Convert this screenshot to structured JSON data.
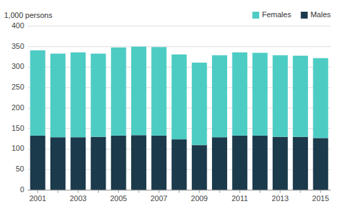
{
  "chart_data": {
    "type": "bar",
    "stacked": true,
    "ylabel": "1,000 persons",
    "categories": [
      "2001",
      null,
      "2003",
      null,
      "2005",
      null,
      "2007",
      null,
      "2009",
      null,
      "2011",
      null,
      "2013",
      null,
      "2015"
    ],
    "series": [
      {
        "name": "Males",
        "color": "#1b3a4b",
        "values": [
          133,
          129,
          129,
          130,
          133,
          134,
          133,
          124,
          110,
          129,
          133,
          133,
          130,
          130,
          127
        ]
      },
      {
        "name": "Females",
        "color": "#4dccc4",
        "values": [
          208,
          204,
          207,
          203,
          215,
          216,
          216,
          207,
          201,
          200,
          203,
          202,
          199,
          198,
          195
        ]
      }
    ],
    "ylim": [
      0,
      400
    ],
    "yticks": [
      0,
      50,
      100,
      150,
      200,
      250,
      300,
      350,
      400
    ],
    "grid": true,
    "legend": "upper right"
  }
}
